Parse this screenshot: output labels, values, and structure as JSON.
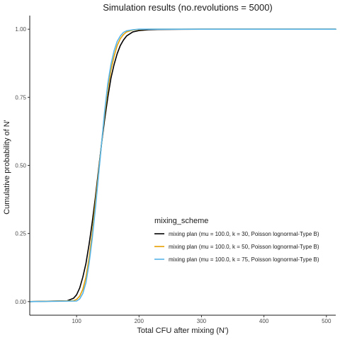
{
  "chart_data": {
    "type": "line",
    "title": "Simulation results (no.revolutions = 5000)",
    "xlabel": "Total CFU after mixing (N')",
    "ylabel": "Cumulative probability of N'",
    "xlim": [
      25,
      515
    ],
    "ylim": [
      -0.05,
      1.05
    ],
    "x_ticks": [
      100,
      200,
      300,
      400,
      500
    ],
    "y_ticks": [
      0.0,
      0.25,
      0.5,
      0.75,
      1.0
    ],
    "x_tick_labels": [
      "100",
      "200",
      "300",
      "400",
      "500"
    ],
    "y_tick_labels": [
      "0.00",
      "0.25",
      "0.50",
      "0.75",
      "1.00"
    ],
    "grid": false,
    "legend": {
      "title": "mixing_scheme",
      "placement": "inside-bottom-right"
    },
    "series": [
      {
        "name": "mixing plan (mu = 100.0, k = 30, Poisson lognormal-Type B)",
        "color": "#000000",
        "x": [
          25,
          85,
          95,
          100,
          105,
          110,
          115,
          120,
          125,
          130,
          135,
          140,
          145,
          150,
          155,
          160,
          165,
          170,
          175,
          180,
          190,
          200,
          215,
          230,
          250,
          300,
          515
        ],
        "y": [
          0.0,
          0.003,
          0.012,
          0.025,
          0.05,
          0.09,
          0.14,
          0.21,
          0.29,
          0.38,
          0.48,
          0.58,
          0.67,
          0.75,
          0.82,
          0.87,
          0.91,
          0.94,
          0.96,
          0.975,
          0.99,
          0.995,
          0.998,
          0.999,
          0.9995,
          1.0,
          1.0
        ]
      },
      {
        "name": "mixing plan (mu = 100.0, k = 50, Poisson lognormal-Type B)",
        "color": "#E69F00",
        "x": [
          25,
          95,
          100,
          105,
          110,
          115,
          120,
          125,
          130,
          135,
          140,
          145,
          150,
          155,
          160,
          165,
          170,
          175,
          180,
          190,
          200,
          215,
          230,
          515
        ],
        "y": [
          0.0,
          0.003,
          0.008,
          0.02,
          0.045,
          0.09,
          0.16,
          0.25,
          0.36,
          0.47,
          0.58,
          0.69,
          0.78,
          0.85,
          0.9,
          0.94,
          0.965,
          0.98,
          0.99,
          0.997,
          0.999,
          1.0,
          1.0,
          1.0
        ]
      },
      {
        "name": "mixing plan (mu = 100.0, k = 75, Poisson lognormal-Type B)",
        "color": "#56B4E9",
        "x": [
          25,
          100,
          105,
          110,
          115,
          120,
          125,
          130,
          135,
          140,
          145,
          150,
          155,
          160,
          165,
          170,
          175,
          180,
          190,
          200,
          215,
          515
        ],
        "y": [
          0.0,
          0.002,
          0.01,
          0.03,
          0.07,
          0.14,
          0.23,
          0.34,
          0.46,
          0.58,
          0.7,
          0.8,
          0.87,
          0.92,
          0.955,
          0.975,
          0.988,
          0.994,
          0.998,
          1.0,
          1.0,
          1.0
        ]
      }
    ]
  }
}
